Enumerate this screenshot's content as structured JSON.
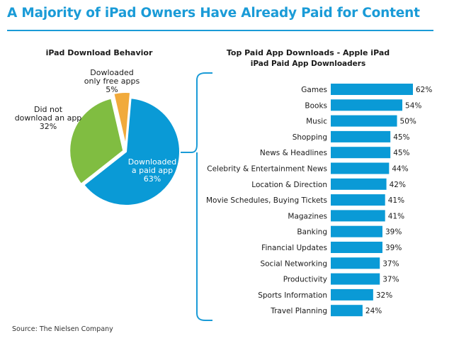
{
  "page": {
    "title": "A Majority of iPad Owners Have Already Paid for Content",
    "source": "Source: The Nielsen Company"
  },
  "colors": {
    "accent": "#1a9bd7",
    "pie_paid": "#0a9ad6",
    "pie_none": "#80bd41",
    "pie_free": "#f1aa3b",
    "bar": "#0a9ad6"
  },
  "chart_data": [
    {
      "type": "pie",
      "title": "iPad Download Behavior",
      "slices": [
        {
          "label": [
            "Downloaded",
            "a paid app"
          ],
          "value": 63,
          "value_label": "63%"
        },
        {
          "label": [
            "Did not",
            "download an app"
          ],
          "value": 32,
          "value_label": "32%"
        },
        {
          "label": [
            "Dowloaded",
            "only free apps"
          ],
          "value": 5,
          "value_label": "5%"
        }
      ]
    },
    {
      "type": "bar",
      "orientation": "horizontal",
      "title": "Top Paid App Downloads - Apple iPad",
      "subtitle": "iPad Paid App Downloaders",
      "categories": [
        "Games",
        "Books",
        "Music",
        "Shopping",
        "News & Headlines",
        "Celebrity & Entertainment News",
        "Location & Direction",
        "Movie Schedules, Buying Tickets",
        "Magazines",
        "Banking",
        "Financial Updates",
        "Social Networking",
        "Productivity",
        "Sports Information",
        "Travel Planning"
      ],
      "values": [
        62,
        54,
        50,
        45,
        45,
        44,
        42,
        41,
        41,
        39,
        39,
        37,
        37,
        32,
        24
      ],
      "value_suffix": "%"
    }
  ]
}
